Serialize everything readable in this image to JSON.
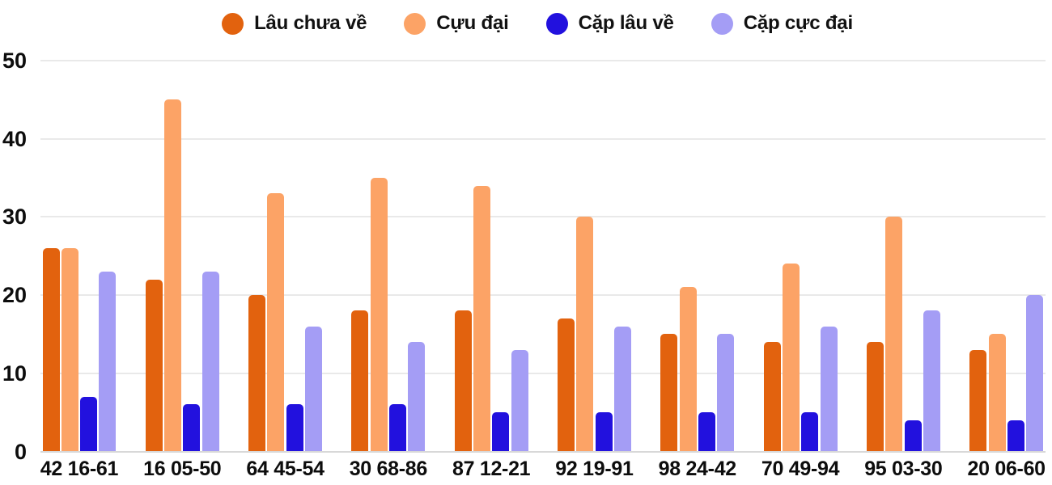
{
  "chart_data": {
    "type": "bar",
    "title": "",
    "xlabel": "",
    "ylabel": "",
    "categories": [
      "42 16-61",
      "16 05-50",
      "64 45-54",
      "30 68-86",
      "87 12-21",
      "92 19-91",
      "98 24-42",
      "70 49-94",
      "95 03-30",
      "20 06-60"
    ],
    "series": [
      {
        "name": "Lâu chưa về",
        "color": "#E2620E",
        "values": [
          26,
          22,
          20,
          18,
          18,
          17,
          15,
          14,
          14,
          13
        ]
      },
      {
        "name": "Cựu đại",
        "color": "#FCA366",
        "values": [
          26,
          45,
          33,
          35,
          34,
          30,
          21,
          24,
          30,
          15
        ]
      },
      {
        "name": "Cặp lâu về",
        "color": "#2211DE",
        "values": [
          7,
          6,
          6,
          6,
          5,
          5,
          5,
          5,
          4,
          4
        ]
      },
      {
        "name": "Cặp cực đại",
        "color": "#A49DF5",
        "values": [
          23,
          23,
          16,
          14,
          13,
          16,
          15,
          16,
          18,
          20
        ]
      }
    ],
    "ylim": [
      0,
      50
    ],
    "yticks": [
      0,
      10,
      20,
      30,
      40,
      50
    ],
    "grid": "horizontal",
    "legend_position": "top-center",
    "gridline_color": "#e9e9e9",
    "axis_line_color": "#d8d8d8",
    "text_color": "#0d0d0d"
  }
}
